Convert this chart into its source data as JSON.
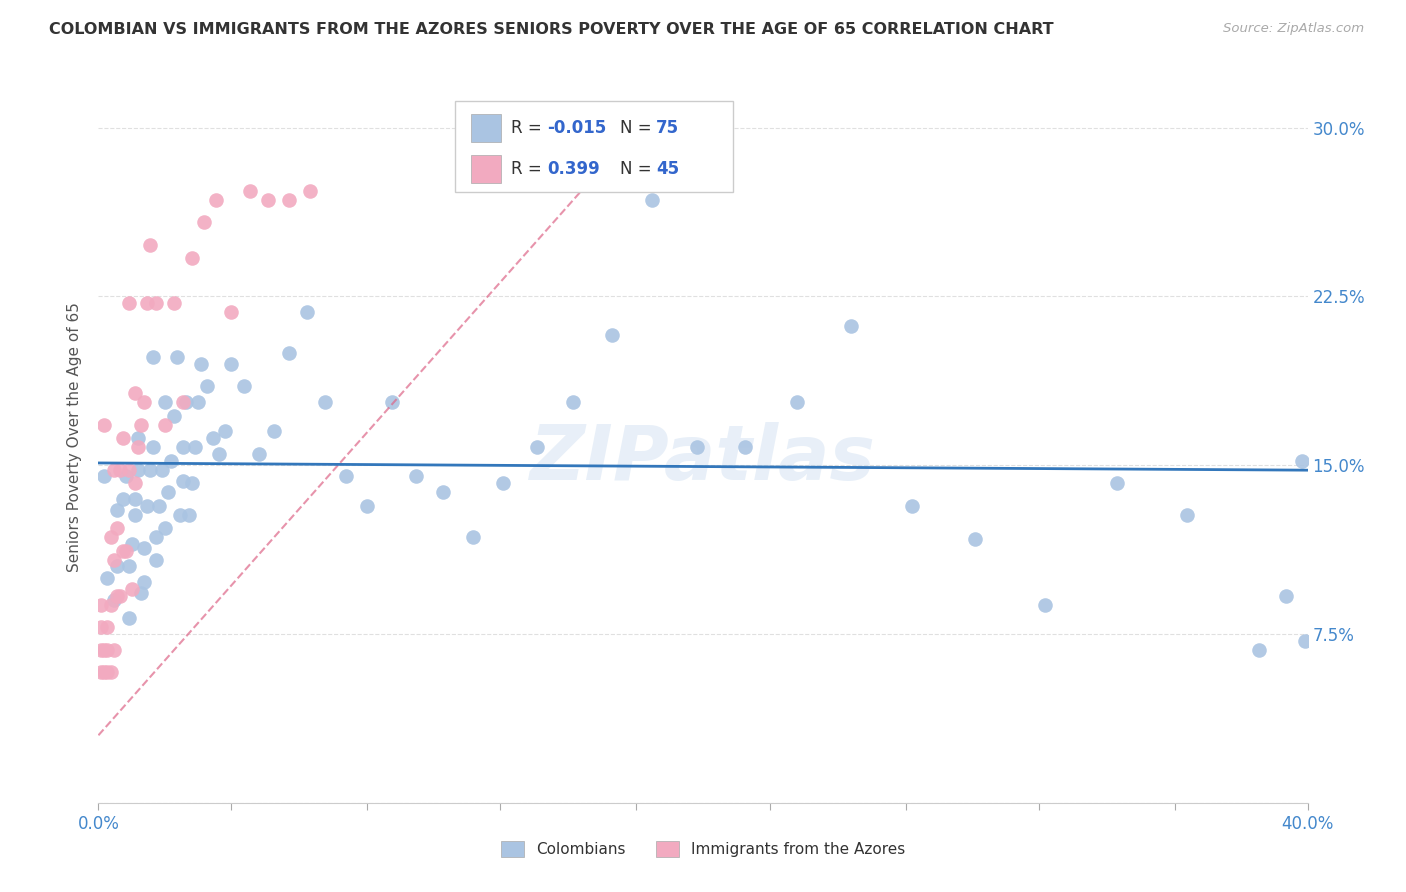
{
  "title": "COLOMBIAN VS IMMIGRANTS FROM THE AZORES SENIORS POVERTY OVER THE AGE OF 65 CORRELATION CHART",
  "source": "Source: ZipAtlas.com",
  "ylabel": "Seniors Poverty Over the Age of 65",
  "xlim": [
    0.0,
    0.4
  ],
  "ylim": [
    0.0,
    0.325
  ],
  "xticks": [
    0.0,
    0.044,
    0.089,
    0.133,
    0.178,
    0.222,
    0.267,
    0.311,
    0.356,
    0.4
  ],
  "yticks": [
    0.0,
    0.075,
    0.15,
    0.225,
    0.3
  ],
  "blue_R": "-0.015",
  "blue_N": "75",
  "pink_R": "0.399",
  "pink_N": "45",
  "blue_color": "#aac4e2",
  "pink_color": "#f2aac0",
  "blue_line_color": "#3377bb",
  "pink_line_color": "#dd6688",
  "trendline_blue_slope": -0.008,
  "trendline_blue_intercept": 0.151,
  "trendline_pink_x0": 0.0,
  "trendline_pink_x1": 0.175,
  "trendline_pink_y0": 0.03,
  "trendline_pink_y1": 0.295,
  "watermark": "ZIPatlas",
  "blue_points_x": [
    0.002,
    0.003,
    0.005,
    0.006,
    0.006,
    0.008,
    0.009,
    0.01,
    0.01,
    0.011,
    0.012,
    0.012,
    0.013,
    0.013,
    0.014,
    0.015,
    0.015,
    0.016,
    0.017,
    0.018,
    0.018,
    0.019,
    0.019,
    0.02,
    0.021,
    0.022,
    0.022,
    0.023,
    0.024,
    0.025,
    0.026,
    0.027,
    0.028,
    0.028,
    0.029,
    0.03,
    0.031,
    0.032,
    0.033,
    0.034,
    0.036,
    0.038,
    0.04,
    0.042,
    0.044,
    0.048,
    0.053,
    0.058,
    0.063,
    0.069,
    0.075,
    0.082,
    0.089,
    0.097,
    0.105,
    0.114,
    0.124,
    0.134,
    0.145,
    0.157,
    0.17,
    0.183,
    0.198,
    0.214,
    0.231,
    0.249,
    0.269,
    0.29,
    0.313,
    0.337,
    0.36,
    0.384,
    0.393,
    0.398,
    0.399
  ],
  "blue_points_y": [
    0.145,
    0.1,
    0.09,
    0.105,
    0.13,
    0.135,
    0.145,
    0.082,
    0.105,
    0.115,
    0.128,
    0.135,
    0.148,
    0.162,
    0.093,
    0.098,
    0.113,
    0.132,
    0.148,
    0.158,
    0.198,
    0.108,
    0.118,
    0.132,
    0.148,
    0.178,
    0.122,
    0.138,
    0.152,
    0.172,
    0.198,
    0.128,
    0.143,
    0.158,
    0.178,
    0.128,
    0.142,
    0.158,
    0.178,
    0.195,
    0.185,
    0.162,
    0.155,
    0.165,
    0.195,
    0.185,
    0.155,
    0.165,
    0.2,
    0.218,
    0.178,
    0.145,
    0.132,
    0.178,
    0.145,
    0.138,
    0.118,
    0.142,
    0.158,
    0.178,
    0.208,
    0.268,
    0.158,
    0.158,
    0.178,
    0.212,
    0.132,
    0.117,
    0.088,
    0.142,
    0.128,
    0.068,
    0.092,
    0.152,
    0.072
  ],
  "pink_points_x": [
    0.001,
    0.001,
    0.001,
    0.001,
    0.002,
    0.002,
    0.002,
    0.003,
    0.003,
    0.003,
    0.004,
    0.004,
    0.004,
    0.005,
    0.005,
    0.005,
    0.006,
    0.006,
    0.007,
    0.007,
    0.008,
    0.008,
    0.009,
    0.01,
    0.01,
    0.011,
    0.012,
    0.012,
    0.013,
    0.014,
    0.015,
    0.016,
    0.017,
    0.019,
    0.022,
    0.025,
    0.028,
    0.031,
    0.035,
    0.039,
    0.044,
    0.05,
    0.056,
    0.063,
    0.07
  ],
  "pink_points_y": [
    0.058,
    0.068,
    0.078,
    0.088,
    0.058,
    0.068,
    0.168,
    0.058,
    0.068,
    0.078,
    0.058,
    0.088,
    0.118,
    0.068,
    0.108,
    0.148,
    0.092,
    0.122,
    0.092,
    0.148,
    0.112,
    0.162,
    0.112,
    0.148,
    0.222,
    0.095,
    0.142,
    0.182,
    0.158,
    0.168,
    0.178,
    0.222,
    0.248,
    0.222,
    0.168,
    0.222,
    0.178,
    0.242,
    0.258,
    0.268,
    0.218,
    0.272,
    0.268,
    0.268,
    0.272
  ],
  "background_color": "#ffffff",
  "grid_color": "#e0e0e0"
}
